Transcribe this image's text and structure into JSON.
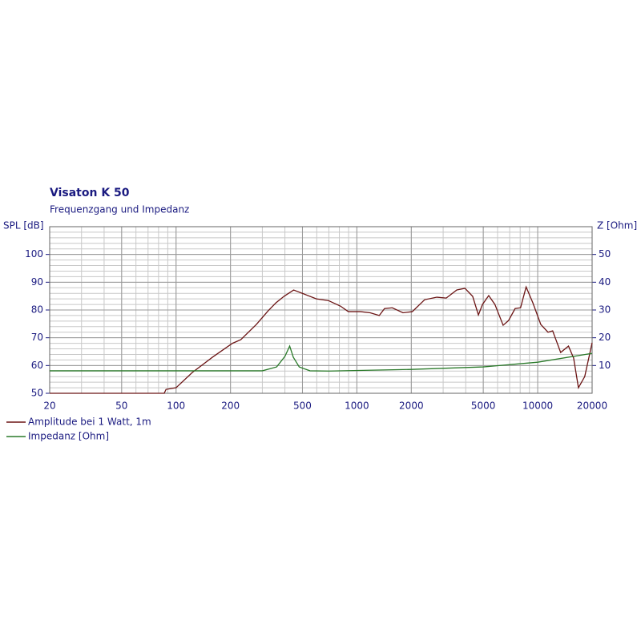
{
  "chart_data": {
    "type": "line",
    "title": "Visaton K 50",
    "subtitle": "Frequenzgang und Impedanz",
    "y_label": "SPL [dB]",
    "y2_label": "Z [Ohm]",
    "xscale": "log",
    "grid": true,
    "legend": "bottom-left",
    "xlim": [
      20,
      20000
    ],
    "xticks": [
      20,
      50,
      100,
      200,
      500,
      1000,
      2000,
      5000,
      10000,
      20000
    ],
    "ylim": [
      50,
      110
    ],
    "yticks": [
      50,
      60,
      70,
      80,
      90,
      100
    ],
    "y2lim": [
      0,
      60
    ],
    "y2ticks": [
      10,
      20,
      30,
      40,
      50
    ],
    "series": [
      {
        "name": "Amplitude bei 1 Watt, 1m",
        "color": "#6b1414",
        "x": [
          20,
          86,
          88,
          100,
          123,
          159,
          205,
          228,
          278,
          323,
          357,
          397,
          447,
          513,
          597,
          695,
          811,
          897,
          1047,
          1185,
          1330,
          1422,
          1570,
          1799,
          2025,
          2370,
          2770,
          3120,
          3570,
          3960,
          4370,
          4700,
          4950,
          5360,
          5800,
          6440,
          6900,
          7500,
          8040,
          8630,
          9400,
          10400,
          11400,
          12100,
          13400,
          14800,
          15800,
          16800,
          18200,
          20000
        ],
        "values": [
          50,
          50,
          51.4,
          52,
          57.5,
          63,
          68,
          69.3,
          74.8,
          79.7,
          82.6,
          85,
          87.2,
          85.7,
          84,
          83.4,
          81.4,
          79.4,
          79.4,
          79,
          78,
          80.5,
          80.8,
          79,
          79.4,
          83.7,
          84.6,
          84.3,
          87.2,
          87.8,
          84.9,
          78.2,
          82,
          85.2,
          82,
          74.5,
          76.2,
          80.5,
          80.8,
          88.3,
          82.6,
          74.8,
          72,
          72.5,
          64.7,
          67,
          62.7,
          52,
          56,
          68.2
        ]
      },
      {
        "name": "Impedanz [Ohm]",
        "color": "#2a7a2a",
        "axis": "y2",
        "x": [
          20,
          300,
          360,
          400,
          425,
          445,
          480,
          550,
          700,
          2000,
          5000,
          10000,
          20000
        ],
        "values": [
          8.1,
          8.1,
          9.5,
          13.3,
          17,
          13,
          9.5,
          8.1,
          8,
          8.6,
          9.5,
          11.2,
          14.4
        ]
      }
    ]
  }
}
